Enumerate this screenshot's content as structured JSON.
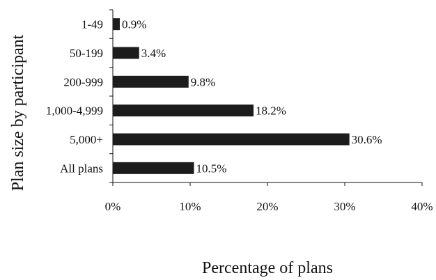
{
  "chart_data": {
    "type": "bar",
    "orientation": "horizontal",
    "categories": [
      "1-49",
      "50-199",
      "200-999",
      "1,000-4,999",
      "5,000+",
      "All plans"
    ],
    "values": [
      0.9,
      3.4,
      9.8,
      18.2,
      30.6,
      10.5
    ],
    "value_labels": [
      "0.9%",
      "3.4%",
      "9.8%",
      "18.2%",
      "30.6%",
      "10.5%"
    ],
    "xlabel": "Percentage of plans",
    "ylabel": "Plan size by participant",
    "xlim": [
      0,
      40
    ],
    "xticks": [
      0,
      10,
      20,
      30,
      40
    ],
    "xtick_labels": [
      "0%",
      "10%",
      "20%",
      "30%",
      "40%"
    ],
    "grid": false,
    "legend": "none",
    "bar_color": "#1c1c1c"
  }
}
